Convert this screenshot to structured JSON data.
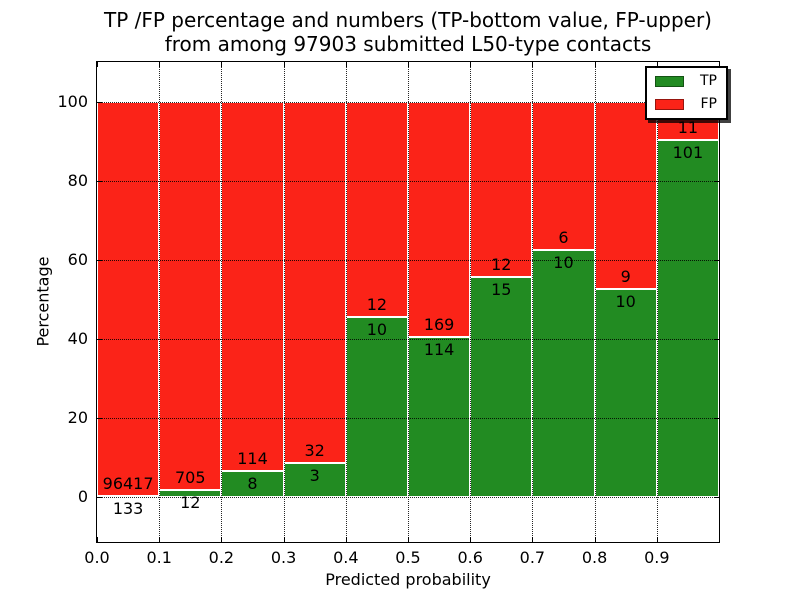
{
  "title": {
    "line1": "TP /FP percentage and numbers (TP-bottom value, FP-upper)",
    "line2": "from among 97903 submitted L50-type contacts"
  },
  "axes": {
    "xlabel": "Predicted probability",
    "ylabel": "Percentage"
  },
  "legend": {
    "position": "upper right",
    "items": [
      {
        "label": "TP",
        "color": "#228b22"
      },
      {
        "label": "FP",
        "color": "#fb2318"
      }
    ]
  },
  "chart_data": {
    "type": "bar",
    "stacked": true,
    "percent_axis": true,
    "title": "TP /FP percentage and numbers (TP-bottom value, FP-upper) from among 97903 submitted L50-type contacts",
    "xlabel": "Predicted probability",
    "ylabel": "Percentage",
    "total_contacts": 97903,
    "x": [
      0.0,
      0.1,
      0.2,
      0.3,
      0.4,
      0.5,
      0.6,
      0.7,
      0.8,
      0.9
    ],
    "bin_width": 0.1,
    "series": [
      {
        "name": "TP",
        "color": "#228b22",
        "counts": [
          133,
          12,
          8,
          3,
          10,
          114,
          15,
          10,
          10,
          101
        ]
      },
      {
        "name": "FP",
        "color": "#fb2318",
        "counts": [
          96417,
          705,
          114,
          32,
          12,
          169,
          12,
          6,
          9,
          11
        ]
      }
    ],
    "tp_percent": [
      0.14,
      1.67,
      6.56,
      8.57,
      45.45,
      40.28,
      55.56,
      62.5,
      52.63,
      90.18
    ],
    "xticks": [
      "0.0",
      "0.1",
      "0.2",
      "0.3",
      "0.4",
      "0.5",
      "0.6",
      "0.7",
      "0.8",
      "0.9"
    ],
    "yticks": [
      0,
      20,
      40,
      60,
      80,
      100
    ],
    "xlim": [
      0.0,
      1.0
    ],
    "ylim": [
      -11.5,
      110
    ],
    "grid": true,
    "legend_position": "upper right"
  }
}
